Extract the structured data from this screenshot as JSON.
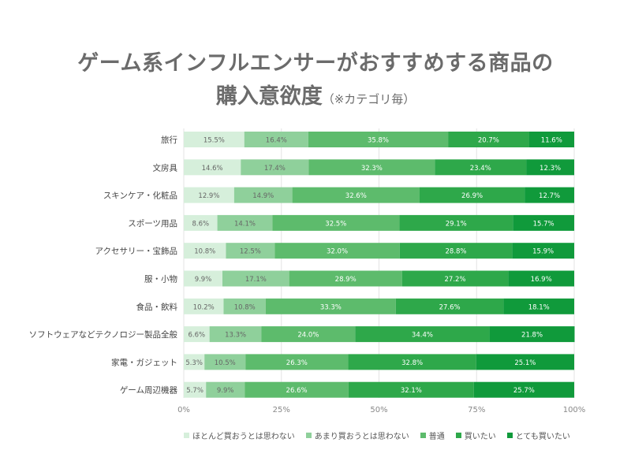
{
  "header": {
    "title_line1": "ゲーム系インフルエンサーがおすすめする商品の",
    "title_line2": "購入意欲度",
    "title_note": "（※カテゴリ毎）"
  },
  "colors": [
    "#d6efdb",
    "#8fd09b",
    "#5dbb6c",
    "#2ea84a",
    "#109a3b"
  ],
  "chart_data": {
    "type": "bar",
    "orientation": "horizontal",
    "stacked": true,
    "percent": true,
    "categories": [
      "旅行",
      "文房具",
      "スキンケア・化粧品",
      "スポーツ用品",
      "アクセサリー・宝飾品",
      "服・小物",
      "食品・飲料",
      "ソフトウェアなどテクノロジー製品全般",
      "家電・ガジェット",
      "ゲーム周辺機器"
    ],
    "series": [
      {
        "name": "ほとんど買おうとは思わない",
        "values": [
          15.5,
          14.6,
          12.9,
          8.6,
          10.8,
          9.9,
          10.2,
          6.6,
          5.3,
          5.7
        ]
      },
      {
        "name": "あまり買おうとは思わない",
        "values": [
          16.4,
          17.4,
          14.9,
          14.1,
          12.5,
          17.1,
          10.8,
          13.3,
          10.5,
          9.9
        ]
      },
      {
        "name": "普通",
        "values": [
          35.8,
          32.3,
          32.6,
          32.5,
          32.0,
          28.9,
          33.3,
          24.0,
          26.3,
          26.6
        ]
      },
      {
        "name": "買いたい",
        "values": [
          20.7,
          23.4,
          26.9,
          29.1,
          28.8,
          27.2,
          27.6,
          34.4,
          32.8,
          32.1
        ]
      },
      {
        "name": "とても買いたい",
        "values": [
          11.6,
          12.3,
          12.7,
          15.7,
          15.9,
          16.9,
          18.1,
          21.8,
          25.1,
          25.7
        ]
      }
    ],
    "xticks": [
      "0%",
      "25%",
      "50%",
      "75%",
      "100%"
    ],
    "xlim": [
      0,
      100
    ],
    "legend_position": "bottom",
    "grid": true
  }
}
